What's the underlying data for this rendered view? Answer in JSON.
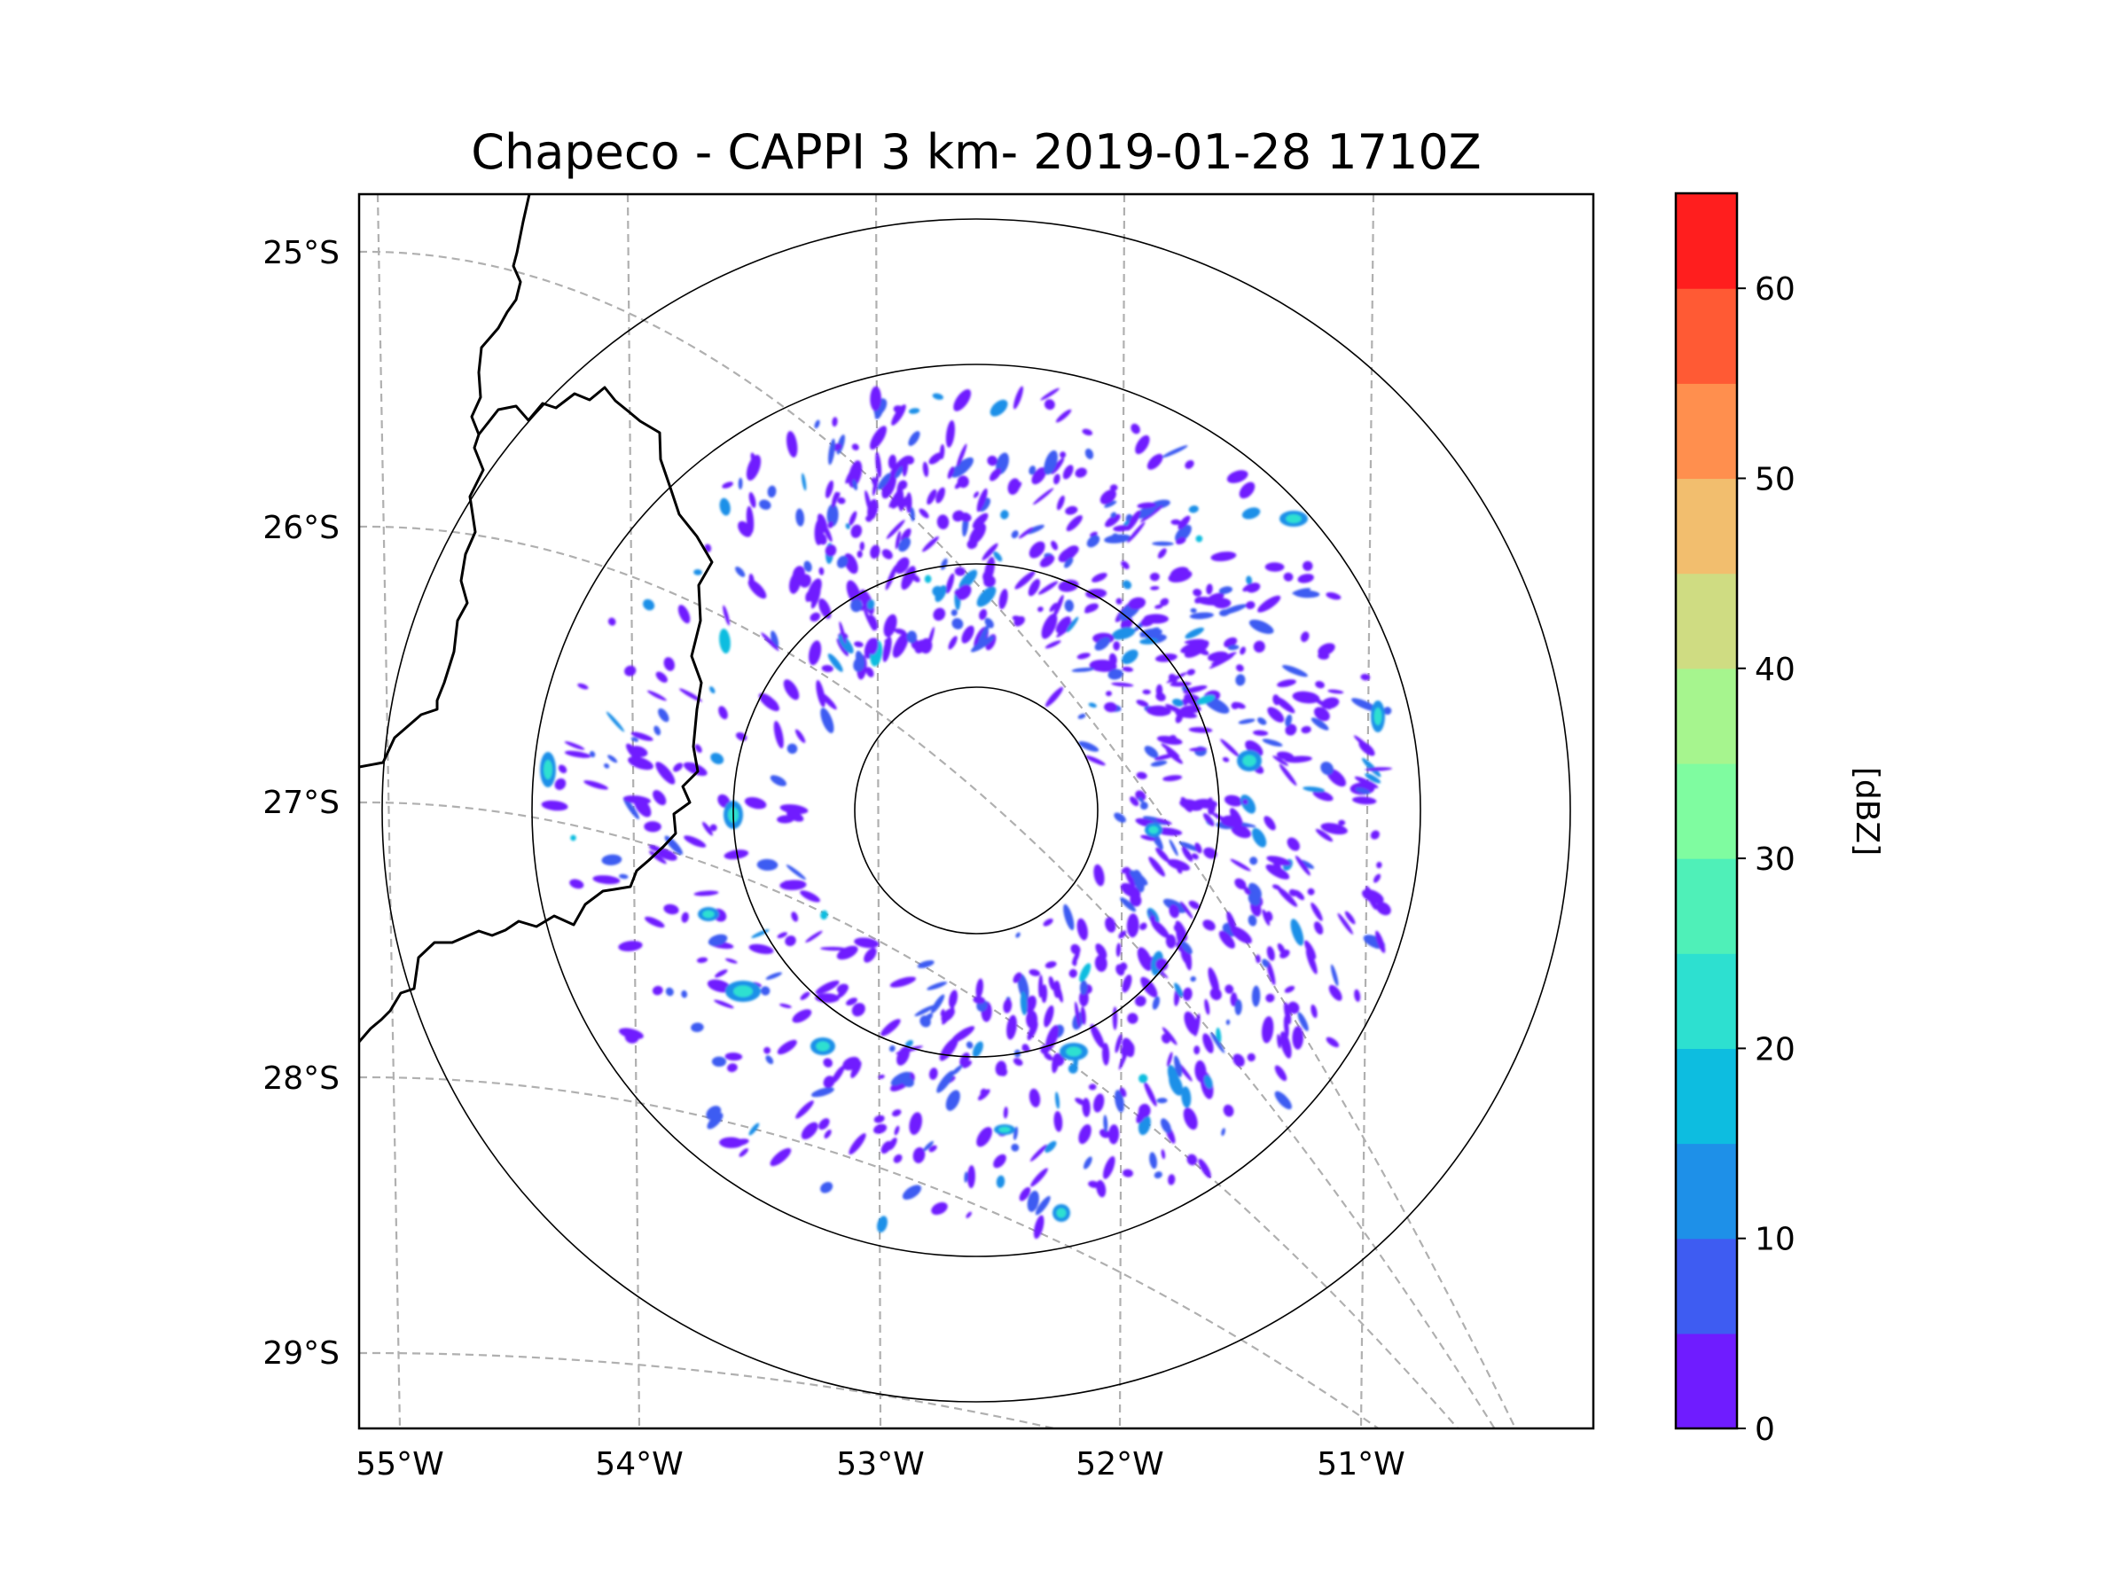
{
  "title": "Chapeco - CAPPI 3 km- 2019-01-28 1710Z",
  "map": {
    "lon_ticks": [
      "55°W",
      "54°W",
      "53°W",
      "52°W",
      "51°W"
    ],
    "lat_ticks": [
      "25°S",
      "26°S",
      "27°S",
      "28°S",
      "29°S"
    ],
    "gridlines": "dashed gray",
    "range_rings": 4
  },
  "colorbar": {
    "label": "[dBZ]",
    "ticks": [
      "0",
      "10",
      "20",
      "30",
      "40",
      "50",
      "60"
    ],
    "bin_starts_dbz": [
      0,
      5,
      10,
      15,
      20,
      25,
      30,
      35,
      40,
      45,
      50,
      55,
      60
    ],
    "range_dbz": [
      0,
      65
    ],
    "colors": [
      "#6f1cff",
      "#3e5cf2",
      "#1e90e8",
      "#0dbde0",
      "#2de0d0",
      "#4ff0b8",
      "#7ffca0",
      "#a6f58e",
      "#cfdc82",
      "#f2be6e",
      "#ff8f4e",
      "#ff5a34",
      "#ff1e1e"
    ]
  },
  "chart_data": {
    "type": "heatmap",
    "title": "Chapeco - CAPPI 3 km- 2019-01-28 1710Z",
    "xlabel": "",
    "ylabel": "",
    "x_ticks": [
      "55°W",
      "54°W",
      "53°W",
      "52°W",
      "51°W"
    ],
    "y_ticks": [
      "25°S",
      "26°S",
      "27°S",
      "28°S",
      "29°S"
    ],
    "colorbar_label": "[dBZ]",
    "colorbar_ticks": [
      0,
      10,
      20,
      30,
      40,
      50,
      60
    ],
    "value_range": [
      0,
      65
    ]
  }
}
